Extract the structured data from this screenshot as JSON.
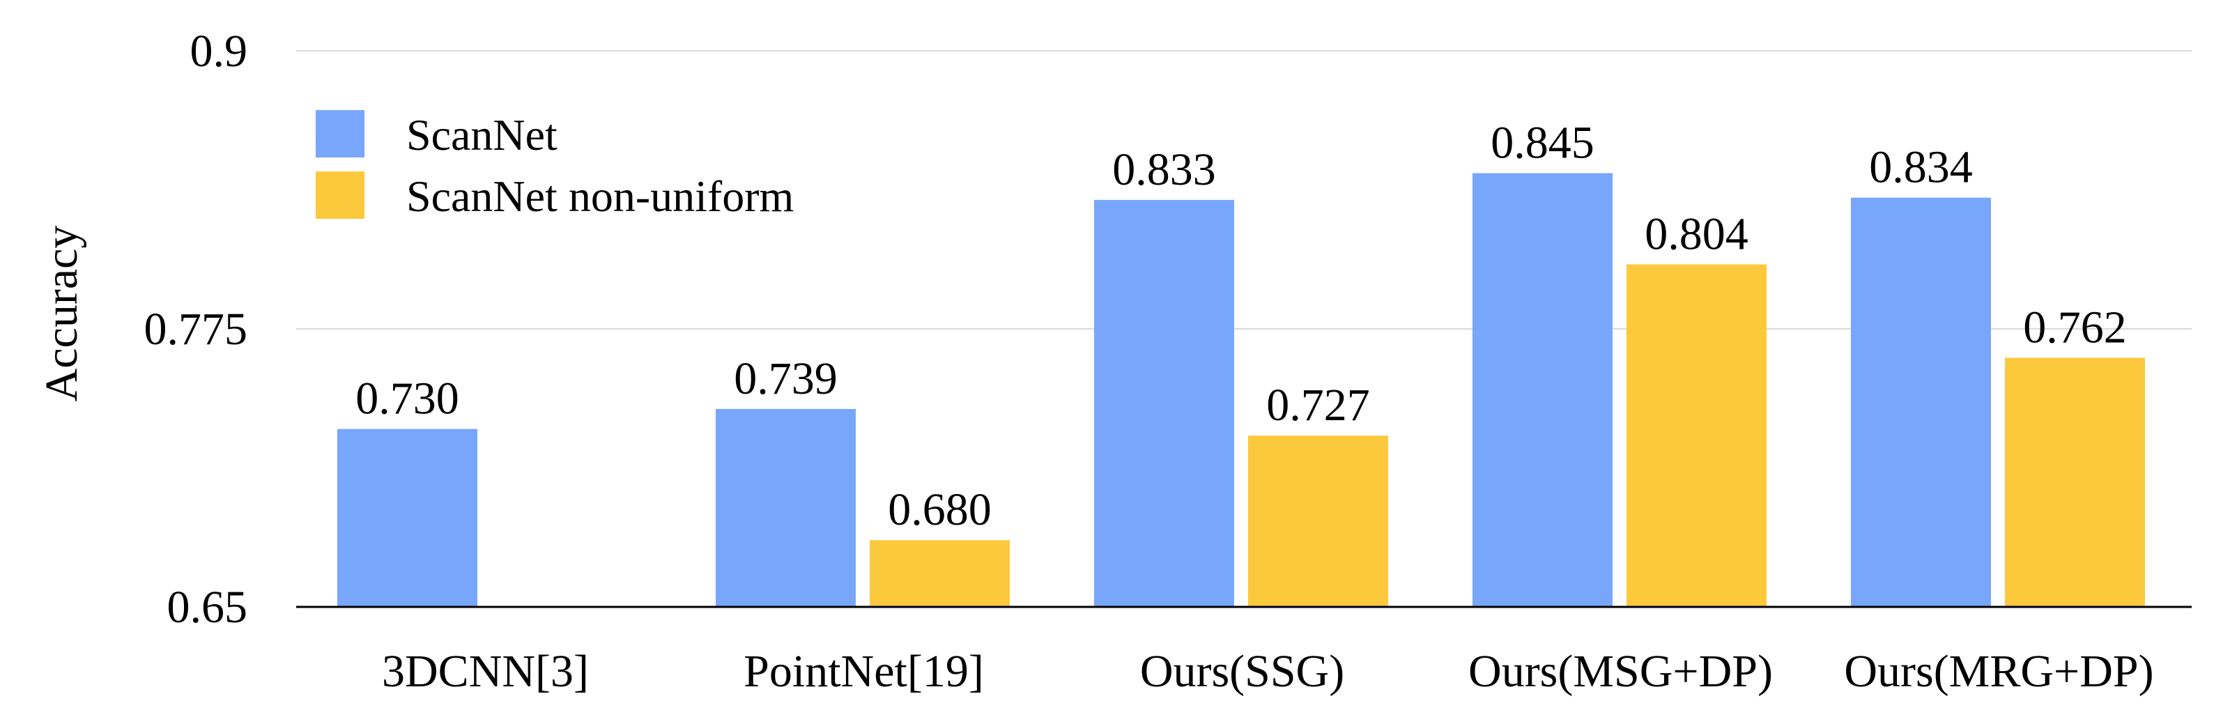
{
  "chart_data": {
    "type": "bar",
    "title": "",
    "xlabel": "",
    "ylabel": "Accuracy",
    "ylim": [
      0.65,
      0.9
    ],
    "yticks": [
      0.65,
      0.775,
      0.9
    ],
    "ytick_labels": [
      "0.65",
      "0.775",
      "0.9"
    ],
    "grid": true,
    "legend_position": "top-left",
    "categories": [
      "3DCNN[3]",
      "PointNet[19]",
      "Ours(SSG)",
      "Ours(MSG+DP)",
      "Ours(MRG+DP)"
    ],
    "series": [
      {
        "name": "ScanNet",
        "color": "#78A6FB",
        "values": [
          0.73,
          0.739,
          0.833,
          0.845,
          0.834
        ],
        "labels": [
          "0.730",
          "0.739",
          "0.833",
          "0.845",
          "0.834"
        ]
      },
      {
        "name": "ScanNet non-uniform",
        "color": "#FCC93C",
        "values": [
          null,
          0.68,
          0.727,
          0.804,
          0.762
        ],
        "labels": [
          "",
          "0.680",
          "0.727",
          "0.804",
          "0.762"
        ]
      }
    ]
  }
}
